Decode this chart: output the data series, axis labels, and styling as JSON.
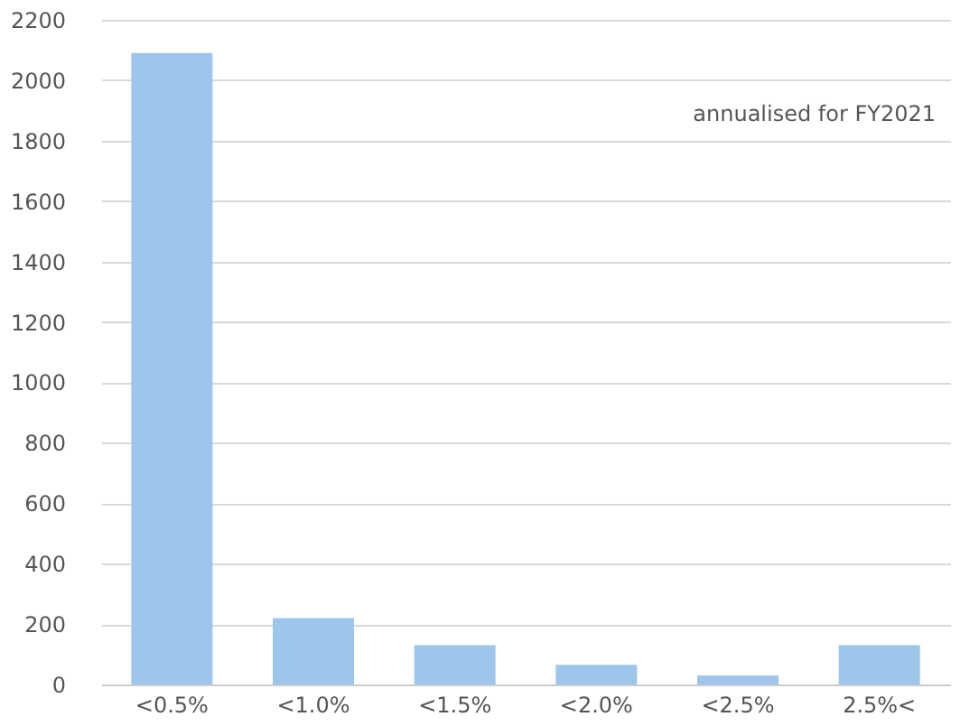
{
  "chart_data": {
    "type": "bar",
    "categories": [
      "<0.5%",
      "<1.0%",
      "<1.5%",
      "<2.0%",
      "<2.5%",
      "2.5%<"
    ],
    "values": [
      2090,
      220,
      130,
      65,
      30,
      130
    ],
    "color": "#9dc6ea",
    "ylim": [
      0,
      2200
    ],
    "yticks": [
      0,
      200,
      400,
      600,
      800,
      1000,
      1200,
      1400,
      1600,
      1800,
      2000,
      2200
    ],
    "grid": "y",
    "annotations": [
      "annualised for FY2021"
    ]
  }
}
